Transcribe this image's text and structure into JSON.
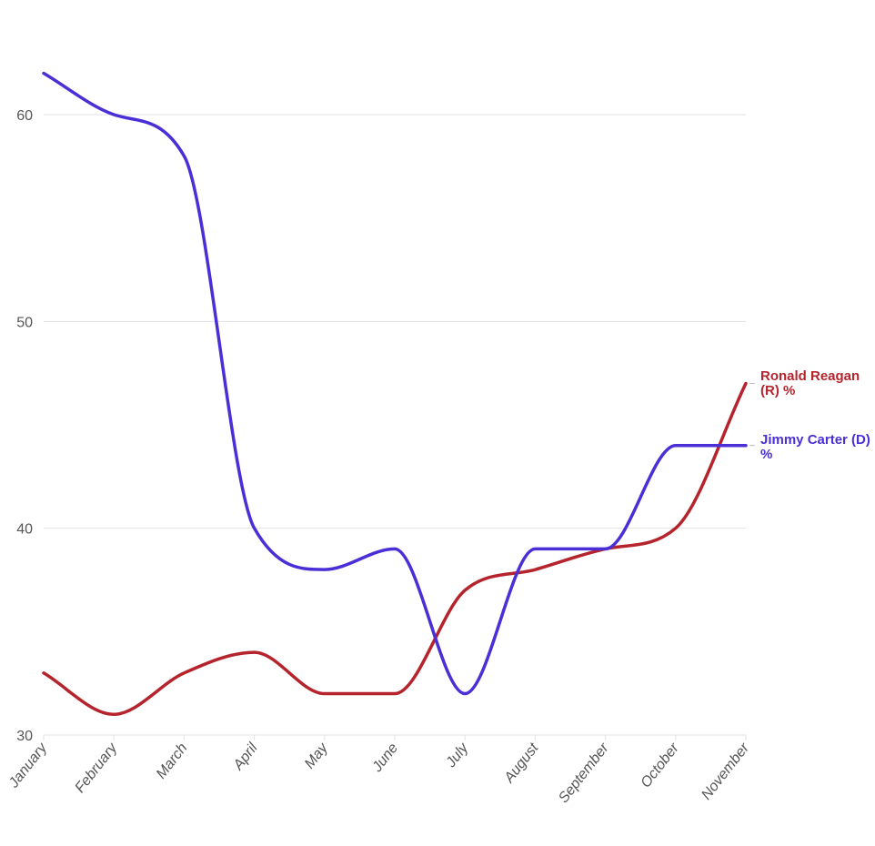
{
  "chart_data": {
    "type": "line",
    "title": "",
    "xlabel": "",
    "ylabel": "",
    "categories": [
      "January",
      "February",
      "March",
      "April",
      "May",
      "June",
      "July",
      "August",
      "September",
      "October",
      "November"
    ],
    "ylim": [
      30,
      65
    ],
    "yticks": [
      30,
      40,
      50,
      60
    ],
    "grid": true,
    "legend": "right, inline labels at line ends",
    "series": [
      {
        "name": "Ronald Reagan (R) %",
        "label_lines": [
          "Ronald Reagan",
          "(R) %"
        ],
        "color": "#b5242c",
        "values": [
          33,
          31,
          33,
          34,
          32,
          32,
          37,
          38,
          39,
          40,
          47
        ]
      },
      {
        "name": "Jimmy Carter (D) %",
        "label_lines": [
          "Jimmy Carter (D)",
          "%"
        ],
        "color": "#4b2fd6",
        "values": [
          62,
          60,
          58,
          40,
          38,
          39,
          32,
          39,
          39,
          44,
          44
        ]
      }
    ]
  }
}
